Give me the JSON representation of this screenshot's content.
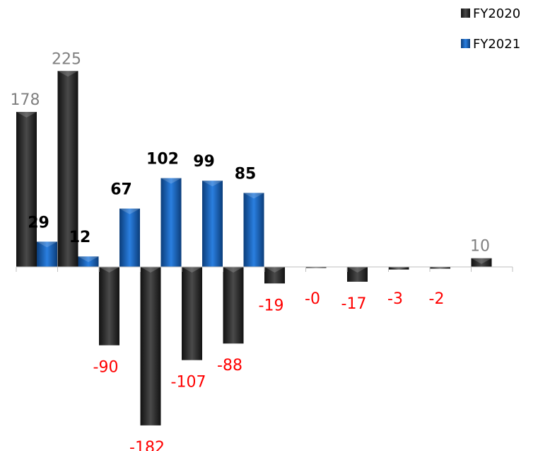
{
  "chart_data": {
    "type": "bar",
    "series": [
      {
        "name": "FY2020",
        "color": "#2e2e2e",
        "values": [
          178,
          225,
          -90,
          -182,
          -107,
          -88,
          -19,
          -0.3,
          -17,
          -3,
          -2,
          10
        ],
        "labels": [
          "178",
          "225",
          "-90",
          "-182",
          "-107",
          "-88",
          "-19",
          "-0",
          "-17",
          "-3",
          "-2",
          "10"
        ]
      },
      {
        "name": "FY2021",
        "color": "#1565c0",
        "values": [
          29,
          12,
          67,
          102,
          99,
          85,
          null,
          null,
          null,
          null,
          null,
          null
        ],
        "labels": [
          "29",
          "12",
          "67",
          "102",
          "99",
          "85",
          "",
          "",
          "",
          "",
          "",
          ""
        ]
      }
    ],
    "label_colors": {
      "positive": "#808080",
      "negative": "#ff0000",
      "fy2021": "#000000"
    },
    "legend": {
      "position": "top-right"
    },
    "grid": false
  }
}
